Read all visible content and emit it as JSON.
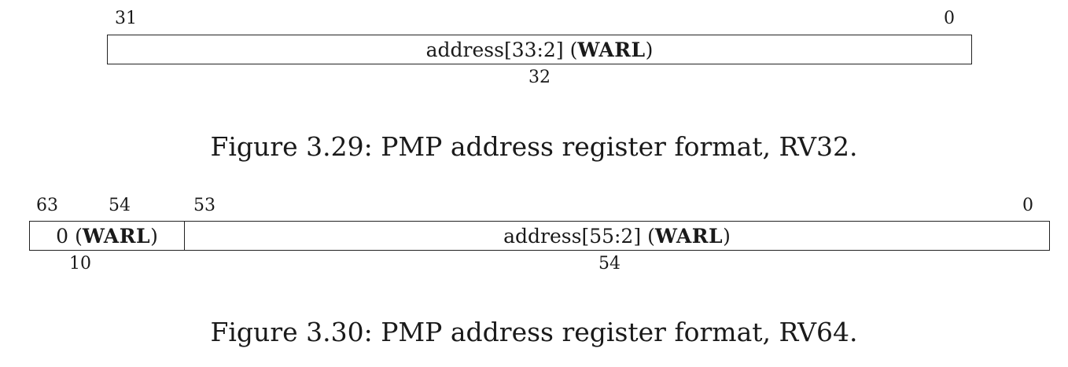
{
  "figures": [
    {
      "caption": "Figure 3.29: PMP address register format, RV32.",
      "fields": [
        {
          "hi": "31",
          "lo": "0",
          "name": "address[33:2]",
          "attr": "WARL",
          "width": "32"
        }
      ]
    },
    {
      "caption": "Figure 3.30: PMP address register format, RV64.",
      "fields": [
        {
          "hi": "63",
          "lo": "54",
          "name": "0",
          "attr": "WARL",
          "width": "10"
        },
        {
          "hi": "53",
          "lo": "0",
          "name": "address[55:2]",
          "attr": "WARL",
          "width": "54"
        }
      ]
    }
  ]
}
